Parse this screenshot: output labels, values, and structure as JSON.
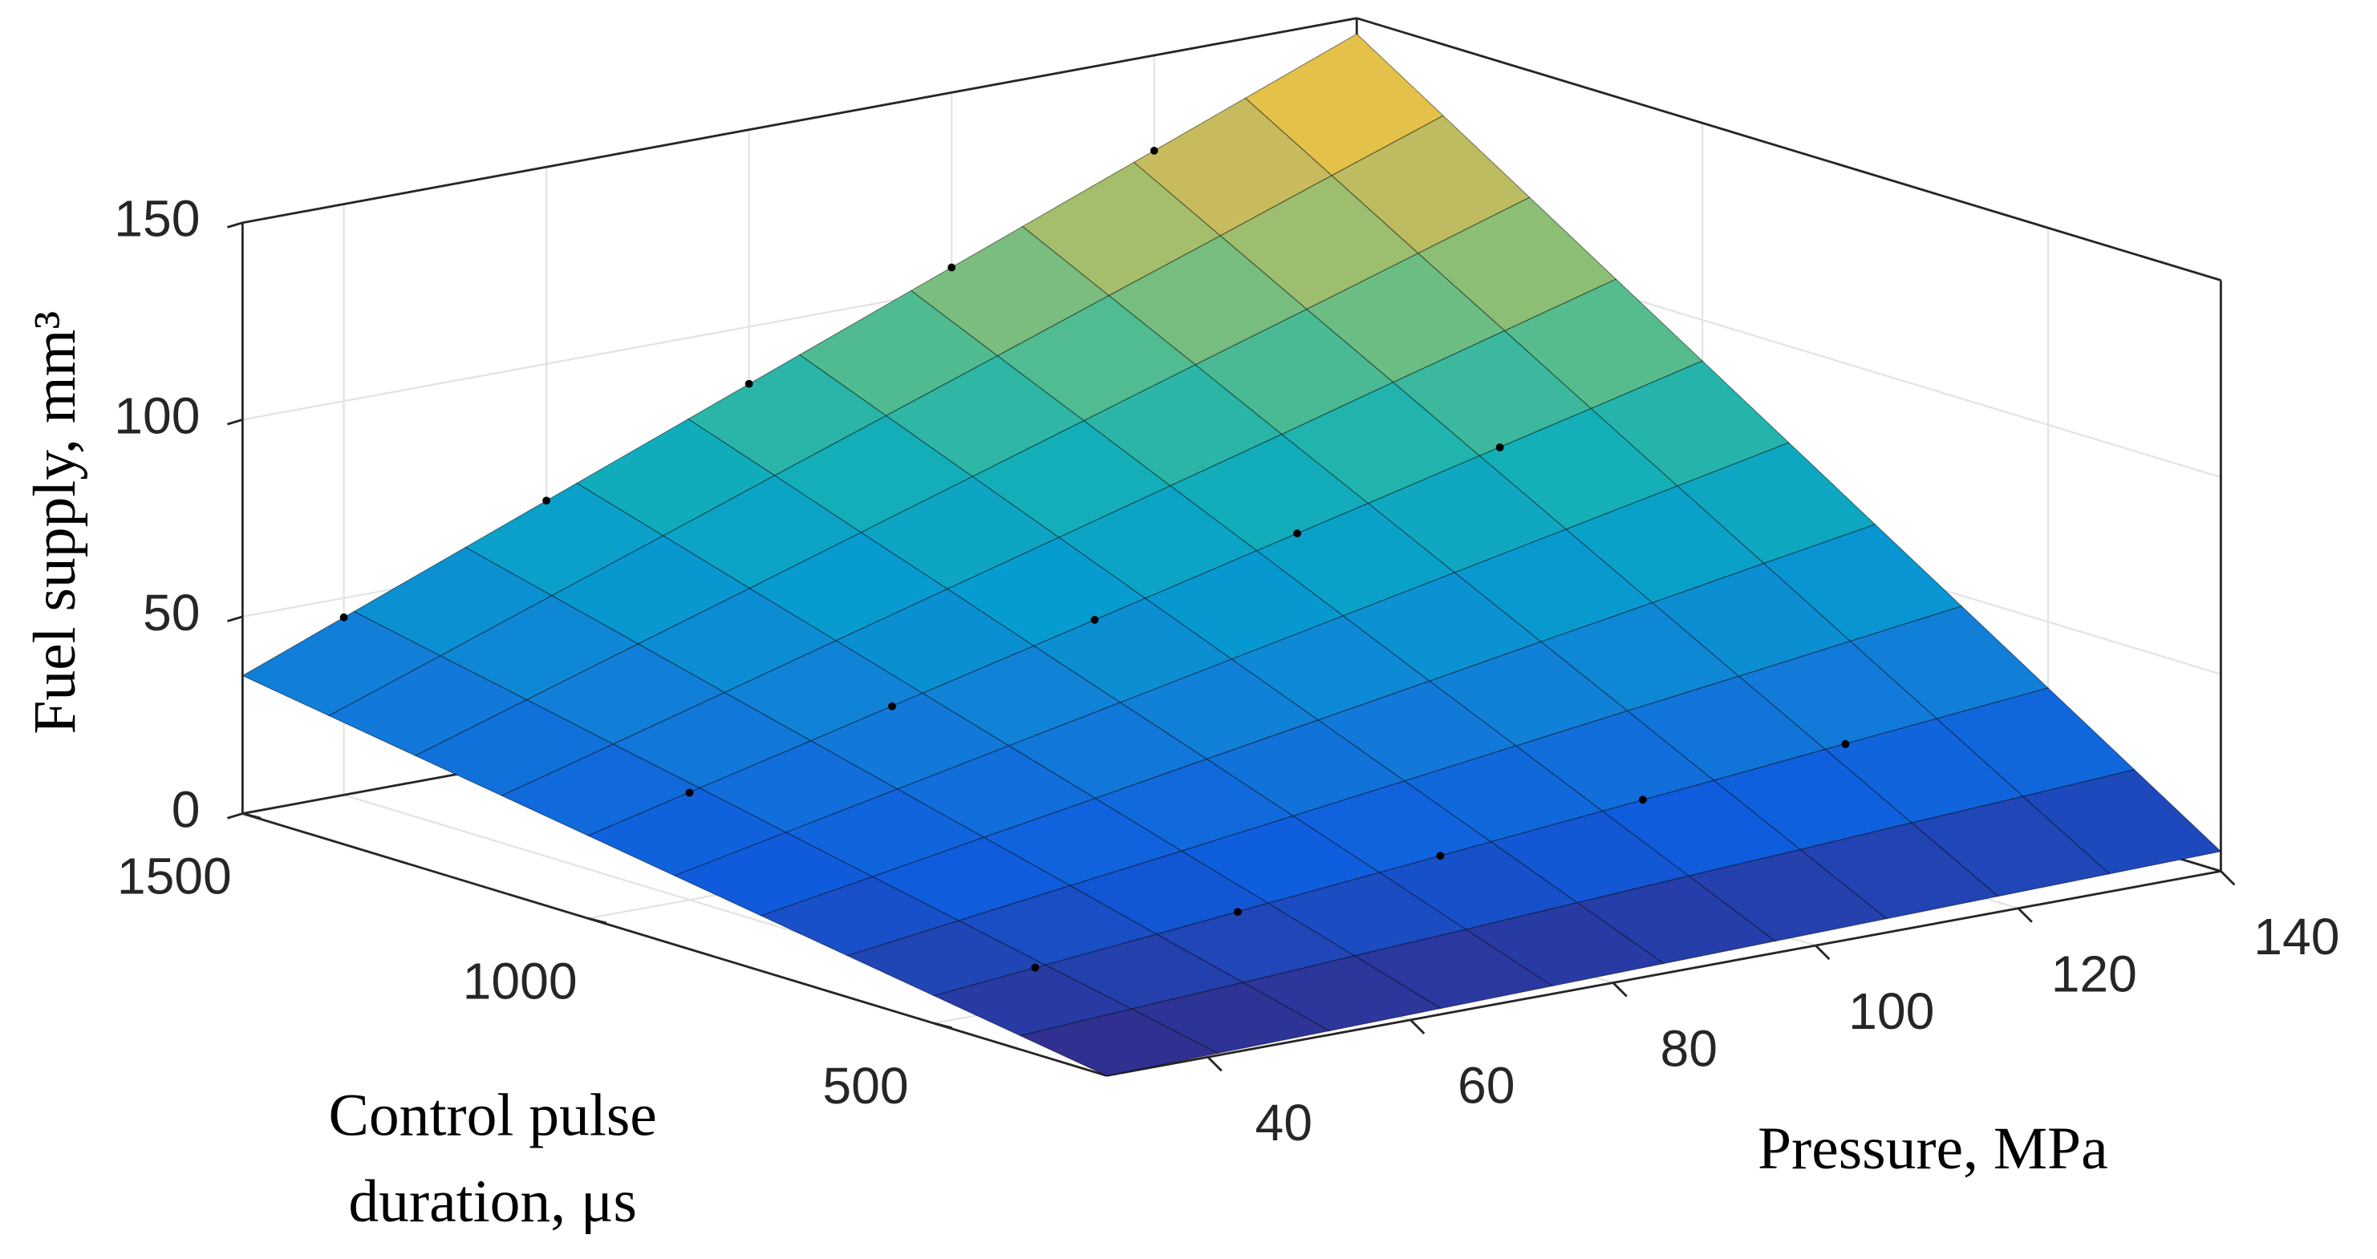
{
  "chart_data": {
    "type": "surface3d",
    "zlabel": "Fuel supply, mm³",
    "xlabel": "Pressure, MPa",
    "ylabel": [
      "Control pulse",
      "duration, μs"
    ],
    "xlim": [
      30,
      140
    ],
    "xticks": [
      40,
      60,
      80,
      100,
      120,
      140
    ],
    "ylim": [
      250,
      1500
    ],
    "yticks": [
      500,
      1000,
      1500
    ],
    "zlim": [
      0,
      150
    ],
    "zticks": [
      0,
      50,
      100,
      150
    ],
    "grid": true,
    "colormap": "parula",
    "surface": {
      "x": [
        30,
        41,
        52,
        63,
        74,
        85,
        96,
        107,
        118,
        129,
        140
      ],
      "y": [
        250,
        375,
        500,
        625,
        750,
        875,
        1000,
        1125,
        1250,
        1375,
        1500
      ],
      "z": [
        [
          0,
          0.5,
          1,
          1.5,
          2,
          2.5,
          3,
          3.5,
          4,
          4.5,
          5
        ],
        [
          3.5,
          5.1,
          6.6,
          8.2,
          9.7,
          11.3,
          12.9,
          14.4,
          16,
          17.5,
          19.1
        ],
        [
          7,
          9.6,
          12.2,
          14.9,
          17.5,
          20.1,
          22.7,
          25.3,
          28,
          30.6,
          33.2
        ],
        [
          10.5,
          14.2,
          17.9,
          21.5,
          25.2,
          28.9,
          32.6,
          36.3,
          39.9,
          43.6,
          47.3
        ],
        [
          14,
          18.7,
          23.5,
          28.2,
          33,
          37.7,
          42.4,
          47.2,
          51.9,
          56.7,
          61.4
        ],
        [
          17.5,
          23.3,
          29.1,
          34.9,
          40.7,
          46.5,
          52.3,
          58.1,
          63.9,
          69.7,
          75.5
        ],
        [
          21,
          27.9,
          34.7,
          41.6,
          48.4,
          55.3,
          62.2,
          69,
          75.9,
          82.7,
          89.6
        ],
        [
          24.5,
          32.4,
          40.3,
          48.3,
          56.2,
          64.1,
          72,
          79.9,
          87.9,
          95.8,
          103.7
        ],
        [
          28,
          37,
          46,
          54.9,
          63.9,
          72.9,
          81.9,
          90.9,
          99.8,
          108.8,
          117.8
        ],
        [
          31.5,
          41.5,
          51.6,
          61.6,
          71.7,
          81.7,
          91.7,
          101.8,
          111.8,
          121.9,
          131.9
        ],
        [
          35,
          46.1,
          57.2,
          68.3,
          79.4,
          90.5,
          101.6,
          112.7,
          123.8,
          134.9,
          146
        ]
      ]
    },
    "points": {
      "x": [
        40,
        60,
        80,
        100,
        120,
        40,
        60,
        80,
        100,
        120,
        40,
        60,
        80,
        100,
        120
      ],
      "y": [
        500,
        500,
        500,
        500,
        500,
        1000,
        1000,
        1000,
        1000,
        1000,
        1500,
        1500,
        1500,
        1500,
        1500
      ],
      "z": [
        9.4,
        14.1,
        18.9,
        23.7,
        28.4,
        27.2,
        39.7,
        52.2,
        64.7,
        77.1,
        45.1,
        65.3,
        85.5,
        105.6,
        125.8
      ],
      "color": "#000000"
    }
  }
}
